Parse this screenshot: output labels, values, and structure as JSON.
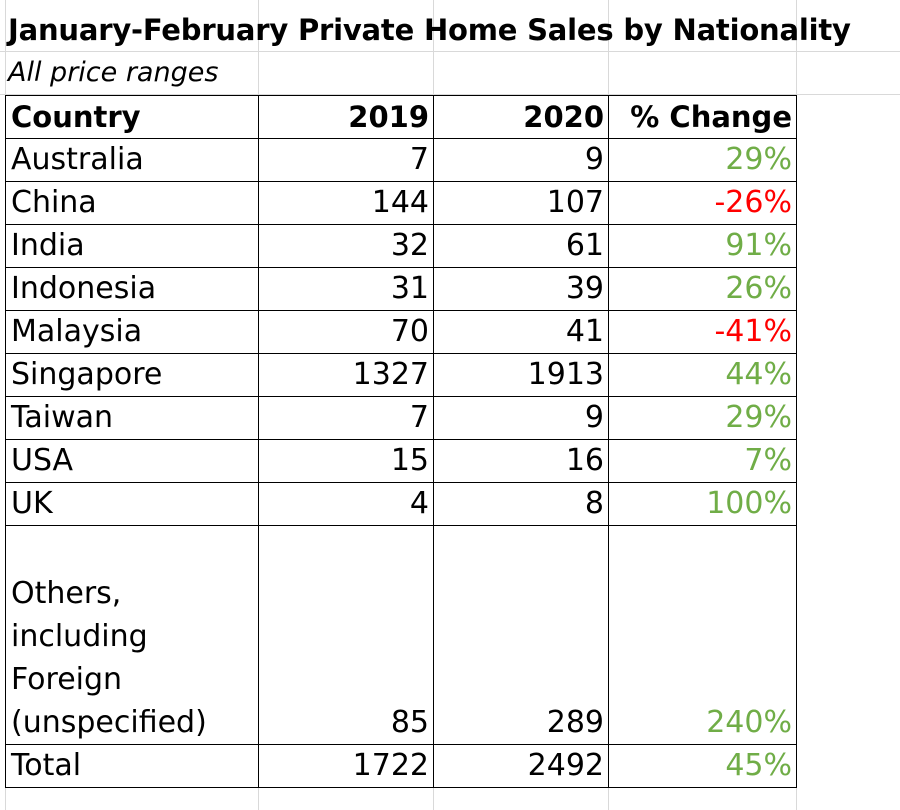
{
  "chart_data": {
    "type": "table",
    "title": "January-February Private Home Sales by Nationality",
    "subtitle": "All price ranges",
    "columns": [
      "Country",
      "2019",
      "2020",
      "% Change"
    ],
    "rows": [
      {
        "country": "Australia",
        "y2019": "7",
        "y2020": "9",
        "change": "29%",
        "direction": "positive"
      },
      {
        "country": "China",
        "y2019": "144",
        "y2020": "107",
        "change": "-26%",
        "direction": "negative"
      },
      {
        "country": "India",
        "y2019": "32",
        "y2020": "61",
        "change": "91%",
        "direction": "positive"
      },
      {
        "country": "Indonesia",
        "y2019": "31",
        "y2020": "39",
        "change": "26%",
        "direction": "positive"
      },
      {
        "country": "Malaysia",
        "y2019": "70",
        "y2020": "41",
        "change": "-41%",
        "direction": "negative"
      },
      {
        "country": "Singapore",
        "y2019": "1327",
        "y2020": "1913",
        "change": "44%",
        "direction": "positive"
      },
      {
        "country": "Taiwan",
        "y2019": "7",
        "y2020": "9",
        "change": "29%",
        "direction": "positive"
      },
      {
        "country": "USA",
        "y2019": "15",
        "y2020": "16",
        "change": "7%",
        "direction": "positive"
      },
      {
        "country": "UK",
        "y2019": "4",
        "y2020": "8",
        "change": "100%",
        "direction": "positive"
      },
      {
        "country": "Others, including Foreign (unspecified)",
        "y2019": "85",
        "y2020": "289",
        "change": "240%",
        "direction": "positive"
      },
      {
        "country": "Total",
        "y2019": "1722",
        "y2020": "2492",
        "change": "45%",
        "direction": "positive"
      }
    ],
    "colors": {
      "positive": "#70ad47",
      "negative": "#ff0000"
    }
  }
}
